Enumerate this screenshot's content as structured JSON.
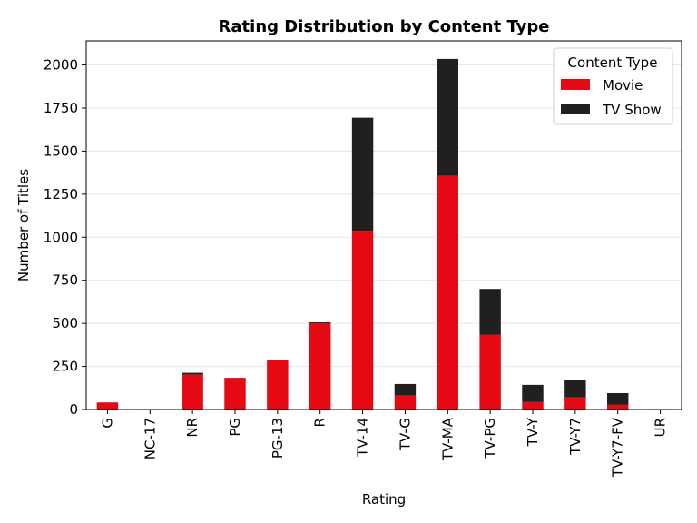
{
  "chart_data": {
    "type": "bar",
    "stacked": true,
    "title": "Rating Distribution by Content Type",
    "xlabel": "Rating",
    "ylabel": "Number of Titles",
    "categories": [
      "G",
      "NC-17",
      "NR",
      "PG",
      "PG-13",
      "R",
      "TV-14",
      "TV-G",
      "TV-MA",
      "TV-PG",
      "TV-Y",
      "TV-Y7",
      "TV-Y7-FV",
      "UR"
    ],
    "series": [
      {
        "name": "Movie",
        "color": "#e50914",
        "values": [
          41,
          3,
          202,
          184,
          289,
          501,
          1038,
          81,
          1356,
          433,
          43,
          70,
          27,
          3
        ]
      },
      {
        "name": "TV Show",
        "color": "#221f1f",
        "values": [
          0,
          0,
          11,
          0,
          0,
          5,
          656,
          67,
          679,
          267,
          100,
          102,
          68,
          0
        ]
      }
    ],
    "ylim": [
      0,
      2140
    ],
    "yticks": [
      0,
      250,
      500,
      750,
      1000,
      1250,
      1500,
      1750,
      2000
    ],
    "grid": "y",
    "legend": {
      "title": "Content Type",
      "placement": "top-right"
    }
  }
}
